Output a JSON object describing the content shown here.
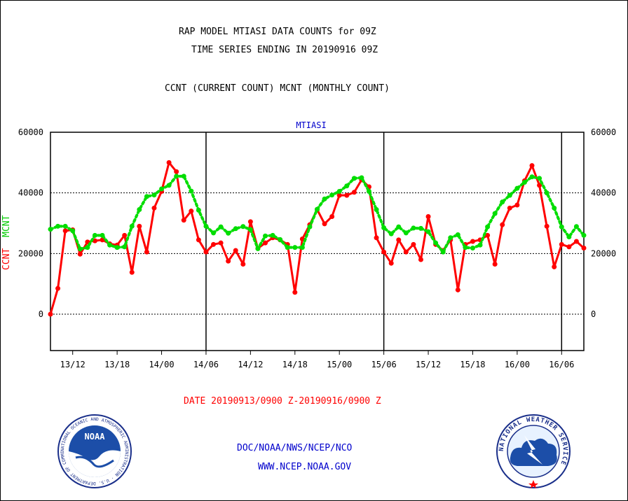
{
  "header": {
    "title_line1": "RAP MODEL MTIASI DATA COUNTS for 09Z",
    "title_line2": "TIME SERIES ENDING IN 20190916 09Z",
    "subtitle": "CCNT (CURRENT COUNT) MCNT (MONTHLY COUNT)"
  },
  "footer": {
    "date_range": "DATE 20190913/0900 Z-20190916/0900 Z",
    "org": "DOC/NOAA/NWS/NCEP/NCO",
    "url": "WWW.NCEP.NOAA.GOV"
  },
  "logos": {
    "noaa": "NOAA",
    "noaa_ring": "NATIONAL OCEANIC AND ATMOSPHERIC ADMINISTRATION · U.S. DEPARTMENT OF COMMERCE ·",
    "nws_ring": "NATIONAL WEATHER SERVICE"
  },
  "chart_data": {
    "type": "line",
    "title": "MTIASI",
    "ylabel_left": [
      "CCNT",
      "MCNT"
    ],
    "ylim": [
      -12000,
      60000
    ],
    "xlim": [
      0,
      72
    ],
    "yticks": [
      0,
      20000,
      40000,
      60000
    ],
    "ytick_labels": [
      "0",
      "20000",
      "40000",
      "60000"
    ],
    "xticks": [
      3,
      9,
      15,
      21,
      27,
      33,
      39,
      45,
      51,
      57,
      63,
      69
    ],
    "xtick_labels": [
      "13/12",
      "13/18",
      "14/00",
      "14/06",
      "14/12",
      "14/18",
      "15/00",
      "15/06",
      "15/12",
      "15/18",
      "16/00",
      "16/06"
    ],
    "day_boundaries": [
      21,
      45,
      69
    ],
    "grid": "horizontal dotted at 0, 20000, 40000",
    "colors": {
      "ccnt": "#ff0000",
      "mcnt": "#00dd00",
      "axis": "#000000",
      "title": "#0000cc"
    },
    "series": [
      {
        "name": "CCNT",
        "style": "solid",
        "x": [
          0,
          1,
          2,
          3,
          4,
          5,
          6,
          7,
          8,
          9,
          10,
          11,
          12,
          13,
          14,
          15,
          16,
          17,
          18,
          19,
          20,
          21,
          22,
          23,
          24,
          25,
          26,
          27,
          28,
          29,
          30,
          31,
          32,
          33,
          34,
          35,
          36,
          37,
          38,
          39,
          40,
          41,
          42,
          43,
          44,
          45,
          46,
          47,
          48,
          49,
          50,
          51,
          52,
          53,
          54,
          55,
          56,
          57,
          58,
          59,
          60,
          61,
          62,
          63,
          64,
          65,
          66,
          67,
          68,
          69,
          70,
          71,
          72
        ],
        "values": [
          0,
          8500,
          27500,
          27800,
          19800,
          23800,
          24200,
          24500,
          23200,
          22800,
          26000,
          13800,
          29000,
          20500,
          35000,
          40500,
          50000,
          47000,
          31000,
          34000,
          24500,
          20500,
          23000,
          23500,
          17500,
          21000,
          16500,
          30500,
          21700,
          23500,
          25200,
          24500,
          23000,
          7200,
          24800,
          29500,
          34500,
          29800,
          32200,
          39200,
          39200,
          40200,
          44300,
          42000,
          25200,
          20500,
          16800,
          24500,
          20500,
          23000,
          18000,
          32200,
          23000,
          21000,
          24500,
          8000,
          23000,
          24000,
          24500,
          26000,
          16500,
          29500,
          35000,
          36000,
          44000,
          49000,
          42500,
          29000,
          15600,
          23000,
          22200,
          24000,
          21800
        ]
      },
      {
        "name": "MCNT",
        "style": "dotted",
        "x": [
          0,
          1,
          2,
          3,
          4,
          5,
          6,
          7,
          8,
          9,
          10,
          11,
          12,
          13,
          14,
          15,
          16,
          17,
          18,
          19,
          20,
          21,
          22,
          23,
          24,
          25,
          26,
          27,
          28,
          29,
          30,
          31,
          32,
          33,
          34,
          35,
          36,
          37,
          38,
          39,
          40,
          41,
          42,
          43,
          44,
          45,
          46,
          47,
          48,
          49,
          50,
          51,
          52,
          53,
          54,
          55,
          56,
          57,
          58,
          59,
          60,
          61,
          62,
          63,
          64,
          65,
          66,
          67,
          68,
          69,
          70,
          71,
          72
        ],
        "values": [
          28000,
          29000,
          29000,
          27500,
          21500,
          22000,
          26000,
          26000,
          22800,
          22000,
          22200,
          29000,
          34500,
          38800,
          39300,
          41300,
          42500,
          45500,
          45500,
          40600,
          34300,
          29000,
          26800,
          28800,
          26700,
          28200,
          28900,
          27900,
          21600,
          25800,
          26000,
          24600,
          22000,
          22000,
          22000,
          28800,
          34600,
          38000,
          39300,
          40500,
          42300,
          44800,
          45000,
          40500,
          34500,
          28500,
          26500,
          28800,
          26800,
          28400,
          28300,
          27200,
          23500,
          20500,
          25200,
          26200,
          22000,
          21800,
          22800,
          28800,
          33200,
          37000,
          39200,
          41500,
          43500,
          45300,
          44800,
          40000,
          35000,
          28800,
          25500,
          28900,
          26000
        ]
      }
    ]
  }
}
